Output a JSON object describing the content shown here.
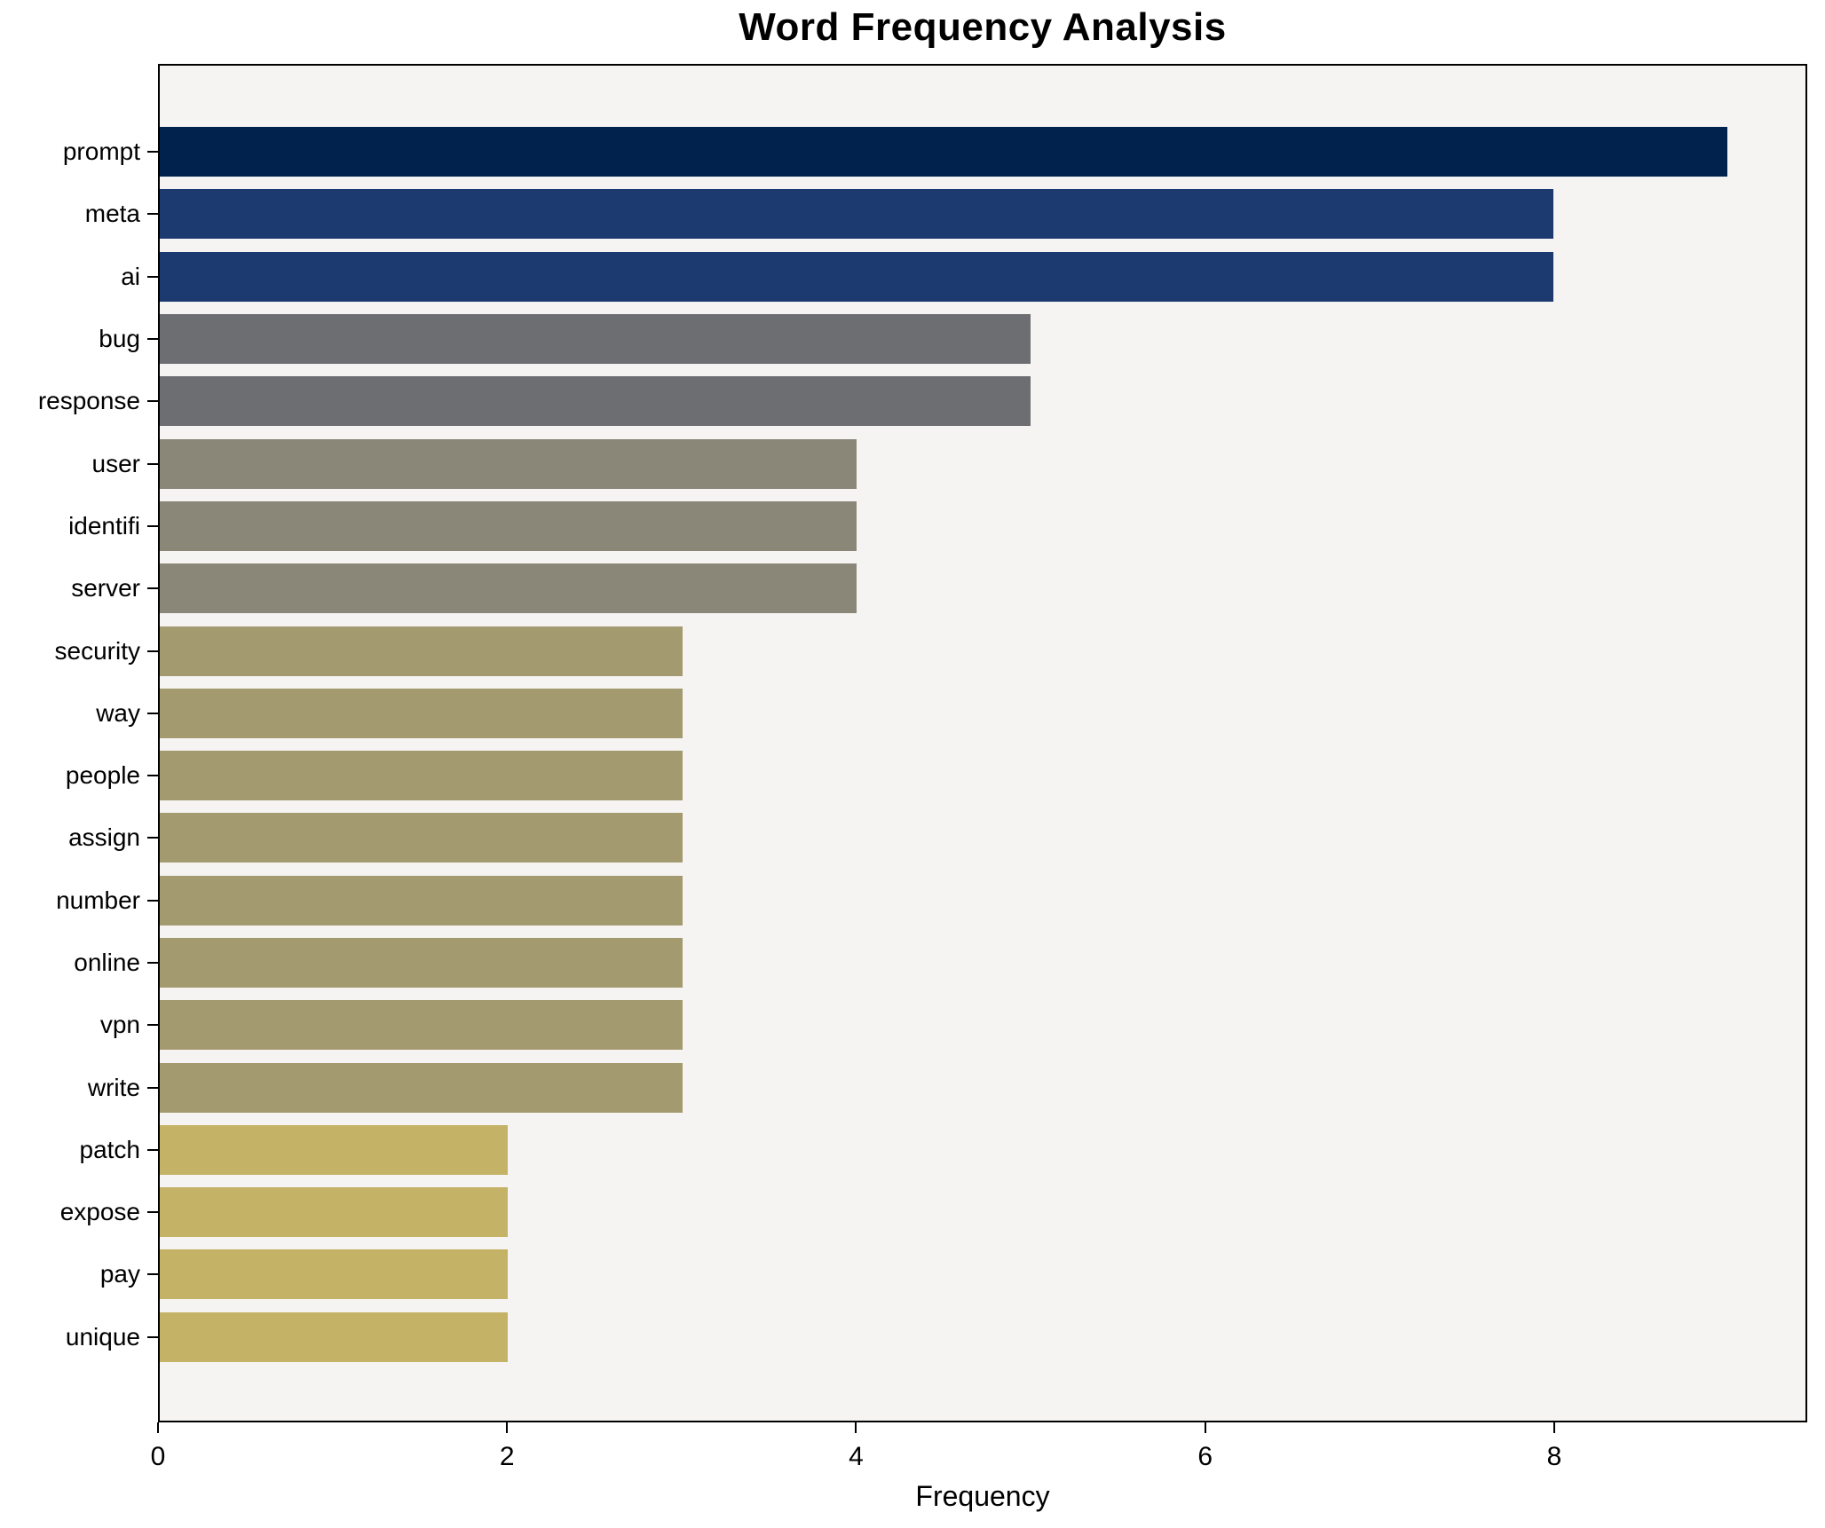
{
  "title": "Word Frequency Analysis",
  "axes": {
    "xlabel": "Frequency",
    "xtick_labels": [
      "0",
      "2",
      "4",
      "6",
      "8"
    ]
  },
  "chart_data": {
    "type": "bar",
    "orientation": "horizontal",
    "title": "Word Frequency Analysis",
    "xlabel": "Frequency",
    "ylabel": "",
    "xlim": [
      0,
      9.45
    ],
    "xticks": [
      0,
      2,
      4,
      6,
      8
    ],
    "grid": false,
    "legend": false,
    "plot_background": "#f5f4f2",
    "figure_background": "#ffffff",
    "bar_height_fraction": 0.8,
    "categories": [
      "prompt",
      "meta",
      "ai",
      "bug",
      "response",
      "user",
      "identifi",
      "server",
      "security",
      "way",
      "people",
      "assign",
      "number",
      "online",
      "vpn",
      "write",
      "patch",
      "expose",
      "pay",
      "unique"
    ],
    "values": [
      9,
      8,
      8,
      5,
      5,
      4,
      4,
      4,
      3,
      3,
      3,
      3,
      3,
      3,
      3,
      3,
      2,
      2,
      2,
      2
    ],
    "bar_colors": [
      "#00224d",
      "#1c3a6f",
      "#1c3a6f",
      "#6d6e71",
      "#6d6e71",
      "#8a8779",
      "#8a8779",
      "#8a8779",
      "#a49a70",
      "#a49a70",
      "#a49a70",
      "#a49a70",
      "#a49a70",
      "#a49a70",
      "#a49a70",
      "#a49a70",
      "#c4b266",
      "#c4b266",
      "#c4b266",
      "#c4b266"
    ]
  }
}
